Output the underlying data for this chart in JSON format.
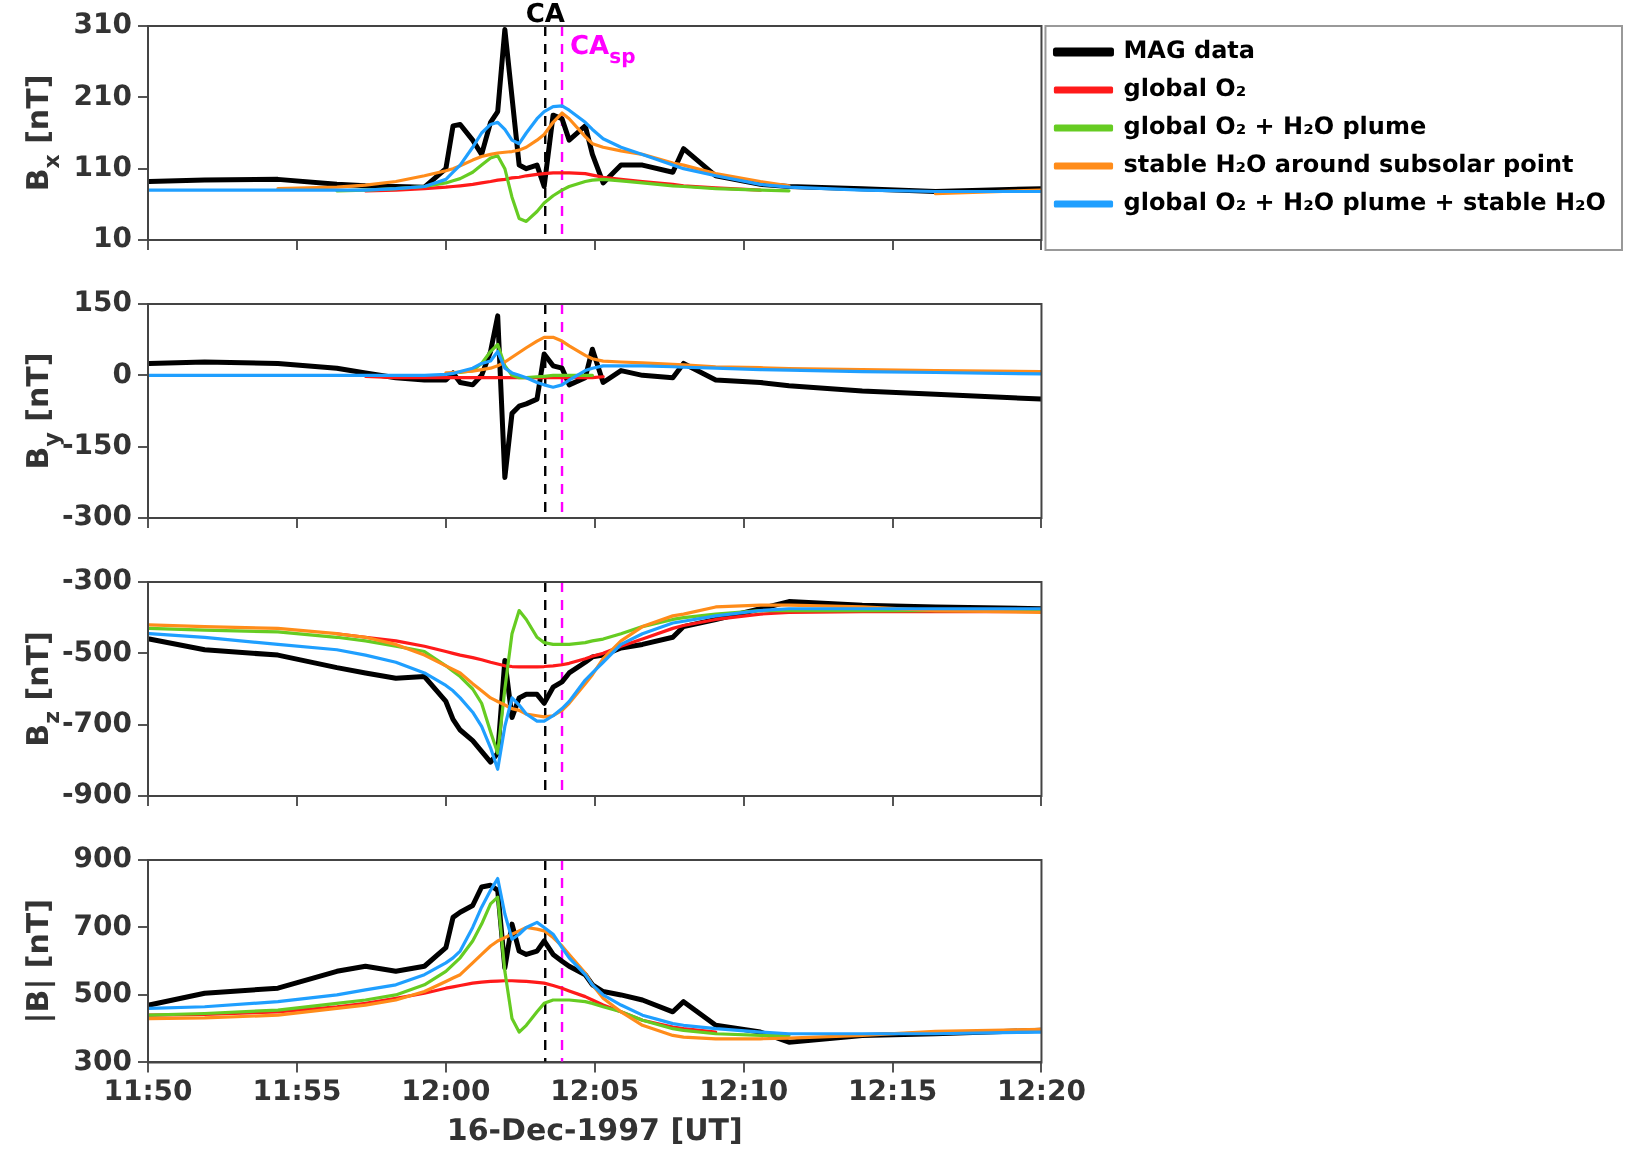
{
  "chart_data": [
    {
      "type": "line",
      "ylabel": "B$_{x}$ [nT]",
      "legend": "right",
      "tick_labels": "y",
      "x": [
        11.834,
        11.865,
        11.906,
        11.939,
        11.955,
        11.972,
        11.988,
        12.0,
        12.004,
        12.008,
        12.015,
        12.02,
        12.025,
        12.029,
        12.033,
        12.037,
        12.041,
        12.045,
        12.051,
        12.055,
        12.06,
        12.065,
        12.069,
        12.078,
        12.082,
        12.088,
        12.098,
        12.11,
        12.127,
        12.133,
        12.151,
        12.176,
        12.192,
        12.233,
        12.274,
        12.333
      ],
      "xlim": [
        11.8333,
        12.3333
      ],
      "xticks": [
        {
          "value": 11.8333,
          "label": null
        },
        {
          "value": 11.9167,
          "label": null
        },
        {
          "value": 12,
          "label": null
        },
        {
          "value": 12.0833,
          "label": null
        },
        {
          "value": 12.1667,
          "label": null
        },
        {
          "value": 12.25,
          "label": null
        },
        {
          "value": 12.3333,
          "label": null
        }
      ],
      "ylim": [
        10,
        310
      ],
      "yticks": [
        10,
        110,
        210,
        310
      ],
      "ref_lines": [
        {
          "axis": "x",
          "value": 12.0556,
          "label": "CA",
          "color": "#000000",
          "line_style": "dashed"
        },
        {
          "axis": "x",
          "value": 12.065,
          "label": "CA$_{sp}$",
          "color": "#ff00ff",
          "line_style": "dashed"
        }
      ],
      "series": [
        {
          "name": "MAG data",
          "color": "#000000",
          "values": [
            92,
            94,
            95,
            88,
            86,
            85,
            84,
            110,
            170,
            172,
            150,
            130,
            175,
            190,
            305,
            210,
            115,
            110,
            115,
            85,
            185,
            180,
            150,
            170,
            130,
            90,
            115,
            115,
            105,
            138,
            100,
            88,
            85,
            82,
            78,
            82
          ]
        },
        {
          "name": "global O₂",
          "color": "#ff1a1a",
          "values": [
            null,
            null,
            null,
            null,
            79,
            80,
            82,
            84,
            85,
            86,
            88,
            90,
            92,
            94,
            95,
            97,
            98,
            100,
            102,
            103,
            104,
            104,
            104,
            103,
            101,
            98,
            95,
            92,
            88,
            86,
            83,
            80,
            null,
            null,
            null,
            null
          ]
        },
        {
          "name": "global O₂ + H₂O plume",
          "color": "#66cc22",
          "values": [
            null,
            null,
            null,
            79,
            80,
            82,
            85,
            90,
            93,
            96,
            105,
            115,
            125,
            128,
            110,
            70,
            40,
            36,
            50,
            62,
            72,
            80,
            85,
            92,
            94,
            95,
            93,
            90,
            86,
            85,
            82,
            80,
            79,
            null,
            null,
            null
          ]
        },
        {
          "name": "stable H₂O around subsolar point",
          "color": "#ff8c1a",
          "values": [
            null,
            null,
            82,
            84,
            87,
            92,
            100,
            107,
            110,
            114,
            122,
            127,
            130,
            132,
            133,
            134,
            136,
            140,
            150,
            158,
            175,
            188,
            180,
            155,
            145,
            140,
            135,
            130,
            118,
            115,
            103,
            92,
            86,
            null,
            75,
            80
          ]
        },
        {
          "name": "global O₂ + H₂O plume + stable H₂O",
          "color": "#1f9fff",
          "values": [
            80,
            80,
            80,
            80,
            80,
            82,
            85,
            95,
            105,
            115,
            140,
            160,
            172,
            175,
            165,
            150,
            145,
            160,
            180,
            190,
            197,
            198,
            192,
            175,
            165,
            152,
            140,
            130,
            115,
            110,
            100,
            88,
            84,
            80,
            78,
            78
          ]
        }
      ]
    },
    {
      "type": "line",
      "ylabel": "B$_{y}$ [nT]",
      "tick_labels": "y",
      "x": [
        11.834,
        11.865,
        11.906,
        11.939,
        11.955,
        11.972,
        11.988,
        12.0,
        12.004,
        12.008,
        12.015,
        12.02,
        12.025,
        12.029,
        12.033,
        12.037,
        12.041,
        12.045,
        12.051,
        12.055,
        12.06,
        12.065,
        12.069,
        12.078,
        12.082,
        12.088,
        12.098,
        12.11,
        12.127,
        12.133,
        12.151,
        12.176,
        12.192,
        12.233,
        12.274,
        12.333
      ],
      "xlim": [
        11.8333,
        12.3333
      ],
      "xticks": [
        {
          "value": 11.8333,
          "label": null
        },
        {
          "value": 11.9167,
          "label": null
        },
        {
          "value": 12,
          "label": null
        },
        {
          "value": 12.0833,
          "label": null
        },
        {
          "value": 12.1667,
          "label": null
        },
        {
          "value": 12.25,
          "label": null
        },
        {
          "value": 12.3333,
          "label": null
        }
      ],
      "ylim": [
        -300,
        150
      ],
      "yticks": [
        -300,
        -150,
        0,
        150
      ],
      "ref_lines": [
        {
          "axis": "x",
          "value": 12.0556,
          "color": "#000000",
          "line_style": "dashed"
        },
        {
          "axis": "x",
          "value": 12.065,
          "color": "#ff00ff",
          "line_style": "dashed"
        }
      ],
      "series": [
        {
          "color": "#000000",
          "values": [
            25,
            28,
            25,
            15,
            5,
            -5,
            -10,
            -10,
            5,
            -15,
            -20,
            0,
            50,
            125,
            -215,
            -80,
            -65,
            -60,
            -50,
            45,
            20,
            15,
            -20,
            -5,
            55,
            -15,
            10,
            0,
            -5,
            25,
            -10,
            -15,
            -22,
            -33,
            -40,
            -50
          ]
        },
        {
          "color": "#ff1a1a",
          "values": [
            null,
            null,
            null,
            null,
            -2,
            -5,
            -5,
            -5,
            -5,
            -5,
            -5,
            -5,
            -5,
            -5,
            -5,
            -5,
            -5,
            -5,
            -5,
            -5,
            -5,
            -5,
            -5,
            -5,
            -5,
            -3,
            null,
            null,
            null,
            null,
            null,
            null,
            null,
            null,
            null,
            null
          ]
        },
        {
          "color": "#66cc22",
          "values": [
            null,
            null,
            null,
            null,
            null,
            null,
            null,
            null,
            null,
            6,
            10,
            25,
            50,
            65,
            20,
            0,
            -5,
            -5,
            -3,
            -2,
            0,
            0,
            0,
            0,
            0,
            null,
            null,
            null,
            null,
            null,
            null,
            null,
            null,
            null,
            null,
            null
          ]
        },
        {
          "color": "#ff8c1a",
          "values": [
            null,
            null,
            null,
            null,
            null,
            null,
            null,
            5,
            6,
            7,
            9,
            12,
            15,
            20,
            28,
            38,
            48,
            58,
            72,
            80,
            80,
            72,
            62,
            42,
            35,
            30,
            28,
            26,
            23,
            22,
            18,
            16,
            14,
            12,
            10,
            8
          ]
        },
        {
          "color": "#1f9fff",
          "values": [
            0,
            0,
            0,
            0,
            0,
            0,
            0,
            2,
            4,
            8,
            15,
            25,
            30,
            50,
            15,
            5,
            0,
            -5,
            -15,
            -20,
            -25,
            -20,
            -10,
            10,
            15,
            20,
            20,
            20,
            18,
            17,
            15,
            12,
            11,
            8,
            6,
            3
          ]
        }
      ]
    },
    {
      "type": "line",
      "ylabel": "B$_{z}$ [nT]",
      "tick_labels": "y",
      "x": [
        11.834,
        11.865,
        11.906,
        11.939,
        11.955,
        11.972,
        11.988,
        12.0,
        12.004,
        12.008,
        12.015,
        12.02,
        12.025,
        12.029,
        12.033,
        12.037,
        12.041,
        12.045,
        12.051,
        12.055,
        12.06,
        12.065,
        12.069,
        12.078,
        12.082,
        12.088,
        12.098,
        12.11,
        12.127,
        12.133,
        12.151,
        12.176,
        12.192,
        12.233,
        12.274,
        12.333
      ],
      "xlim": [
        11.8333,
        12.3333
      ],
      "xticks": [
        {
          "value": 11.8333,
          "label": null
        },
        {
          "value": 11.9167,
          "label": null
        },
        {
          "value": 12,
          "label": null
        },
        {
          "value": 12.0833,
          "label": null
        },
        {
          "value": 12.1667,
          "label": null
        },
        {
          "value": 12.25,
          "label": null
        },
        {
          "value": 12.3333,
          "label": null
        }
      ],
      "ylim": [
        -900,
        -300
      ],
      "yticks": [
        -900,
        -700,
        -500,
        -300
      ],
      "ref_lines": [
        {
          "axis": "x",
          "value": 12.0556,
          "color": "#000000",
          "line_style": "dashed"
        },
        {
          "axis": "x",
          "value": 12.065,
          "color": "#ff00ff",
          "line_style": "dashed"
        }
      ],
      "series": [
        {
          "color": "#000000",
          "values": [
            -460,
            -490,
            -505,
            -540,
            -555,
            -570,
            -565,
            -635,
            -685,
            -715,
            -745,
            -775,
            -805,
            -780,
            -520,
            -680,
            -625,
            -615,
            -615,
            -640,
            -595,
            -580,
            -555,
            -525,
            -510,
            -505,
            -485,
            -475,
            -455,
            -425,
            -405,
            -375,
            -355,
            -365,
            -370,
            -375
          ]
        },
        {
          "color": "#ff1a1a",
          "values": [
            null,
            null,
            null,
            -445,
            -455,
            -465,
            -480,
            -495,
            -500,
            -505,
            -512,
            -518,
            -525,
            -530,
            -535,
            -537,
            -538,
            -538,
            -538,
            -537,
            -535,
            -532,
            -528,
            -515,
            -508,
            -500,
            -480,
            -460,
            -430,
            -422,
            -405,
            -390,
            -385,
            -383,
            -383,
            -383
          ]
        },
        {
          "color": "#66cc22",
          "values": [
            -430,
            -435,
            -440,
            -455,
            -465,
            -480,
            -495,
            -535,
            -550,
            -565,
            -600,
            -640,
            -720,
            -780,
            -600,
            -445,
            -380,
            -405,
            -455,
            -470,
            -475,
            -475,
            -475,
            -470,
            -465,
            -460,
            -445,
            -425,
            -405,
            -400,
            -390,
            -380,
            -380,
            -380,
            -380,
            -380
          ]
        },
        {
          "color": "#ff8c1a",
          "values": [
            -420,
            -425,
            -430,
            -445,
            -455,
            -475,
            -505,
            -535,
            -545,
            -555,
            -585,
            -605,
            -625,
            -635,
            -645,
            -655,
            -660,
            -670,
            -675,
            -678,
            -675,
            -660,
            -640,
            -585,
            -560,
            -515,
            -465,
            -425,
            -395,
            -390,
            -370,
            -365,
            -365,
            -370,
            -380,
            -385
          ]
        },
        {
          "color": "#1f9fff",
          "values": [
            -445,
            -455,
            -475,
            -490,
            -505,
            -525,
            -555,
            -590,
            -605,
            -625,
            -665,
            -705,
            -765,
            -825,
            -705,
            -625,
            -645,
            -670,
            -690,
            -690,
            -675,
            -655,
            -635,
            -575,
            -555,
            -525,
            -475,
            -445,
            -415,
            -410,
            -395,
            -380,
            -375,
            -375,
            -375,
            -375
          ]
        }
      ]
    },
    {
      "type": "line",
      "ylabel": "|B| [nT]",
      "xlabel": "16-Dec-1997 [UT]",
      "x": [
        11.834,
        11.865,
        11.906,
        11.939,
        11.955,
        11.972,
        11.988,
        12.0,
        12.004,
        12.008,
        12.015,
        12.02,
        12.025,
        12.029,
        12.033,
        12.037,
        12.041,
        12.045,
        12.051,
        12.055,
        12.06,
        12.065,
        12.069,
        12.078,
        12.082,
        12.088,
        12.098,
        12.11,
        12.127,
        12.133,
        12.151,
        12.176,
        12.192,
        12.233,
        12.274,
        12.333
      ],
      "xlim": [
        11.8333,
        12.3333
      ],
      "xticks": [
        {
          "value": 11.8333,
          "label": "11:50"
        },
        {
          "value": 11.9167,
          "label": "11:55"
        },
        {
          "value": 12,
          "label": "12:00"
        },
        {
          "value": 12.0833,
          "label": "12:05"
        },
        {
          "value": 12.1667,
          "label": "12:10"
        },
        {
          "value": 12.25,
          "label": "12:15"
        },
        {
          "value": 12.3333,
          "label": "12:20"
        }
      ],
      "ylim": [
        300,
        900
      ],
      "yticks": [
        300,
        500,
        700,
        900
      ],
      "ref_lines": [
        {
          "axis": "x",
          "value": 12.0556,
          "color": "#000000",
          "line_style": "dashed"
        },
        {
          "axis": "x",
          "value": 12.065,
          "color": "#ff00ff",
          "line_style": "dashed"
        }
      ],
      "series": [
        {
          "color": "#000000",
          "values": [
            470,
            505,
            520,
            570,
            585,
            570,
            585,
            640,
            730,
            745,
            765,
            820,
            825,
            810,
            580,
            710,
            630,
            620,
            630,
            660,
            620,
            600,
            585,
            560,
            530,
            510,
            500,
            485,
            450,
            480,
            410,
            390,
            360,
            380,
            385,
            395
          ]
        },
        {
          "color": "#ff1a1a",
          "values": [
            440,
            442,
            450,
            465,
            475,
            490,
            505,
            520,
            524,
            528,
            535,
            538,
            540,
            541,
            542,
            542,
            541,
            540,
            537,
            535,
            528,
            520,
            512,
            495,
            485,
            470,
            450,
            425,
            405,
            400,
            390,
            null,
            null,
            null,
            null,
            null
          ]
        },
        {
          "color": "#66cc22",
          "values": [
            440,
            445,
            455,
            475,
            485,
            500,
            530,
            570,
            590,
            610,
            660,
            710,
            770,
            790,
            570,
            430,
            390,
            410,
            450,
            475,
            485,
            485,
            485,
            480,
            475,
            465,
            450,
            425,
            400,
            395,
            385,
            380,
            380,
            null,
            null,
            null
          ]
        },
        {
          "color": "#ff8c1a",
          "values": [
            430,
            432,
            440,
            460,
            470,
            485,
            510,
            540,
            550,
            560,
            595,
            620,
            645,
            660,
            670,
            680,
            690,
            700,
            695,
            690,
            670,
            645,
            620,
            565,
            530,
            490,
            450,
            410,
            380,
            375,
            370,
            370,
            372,
            380,
            392,
            398
          ]
        },
        {
          "color": "#1f9fff",
          "values": [
            460,
            465,
            480,
            500,
            515,
            530,
            560,
            595,
            610,
            630,
            700,
            760,
            810,
            845,
            740,
            665,
            680,
            700,
            715,
            700,
            680,
            640,
            610,
            560,
            530,
            500,
            470,
            440,
            415,
            410,
            400,
            390,
            385,
            385,
            385,
            390
          ]
        }
      ]
    }
  ]
}
